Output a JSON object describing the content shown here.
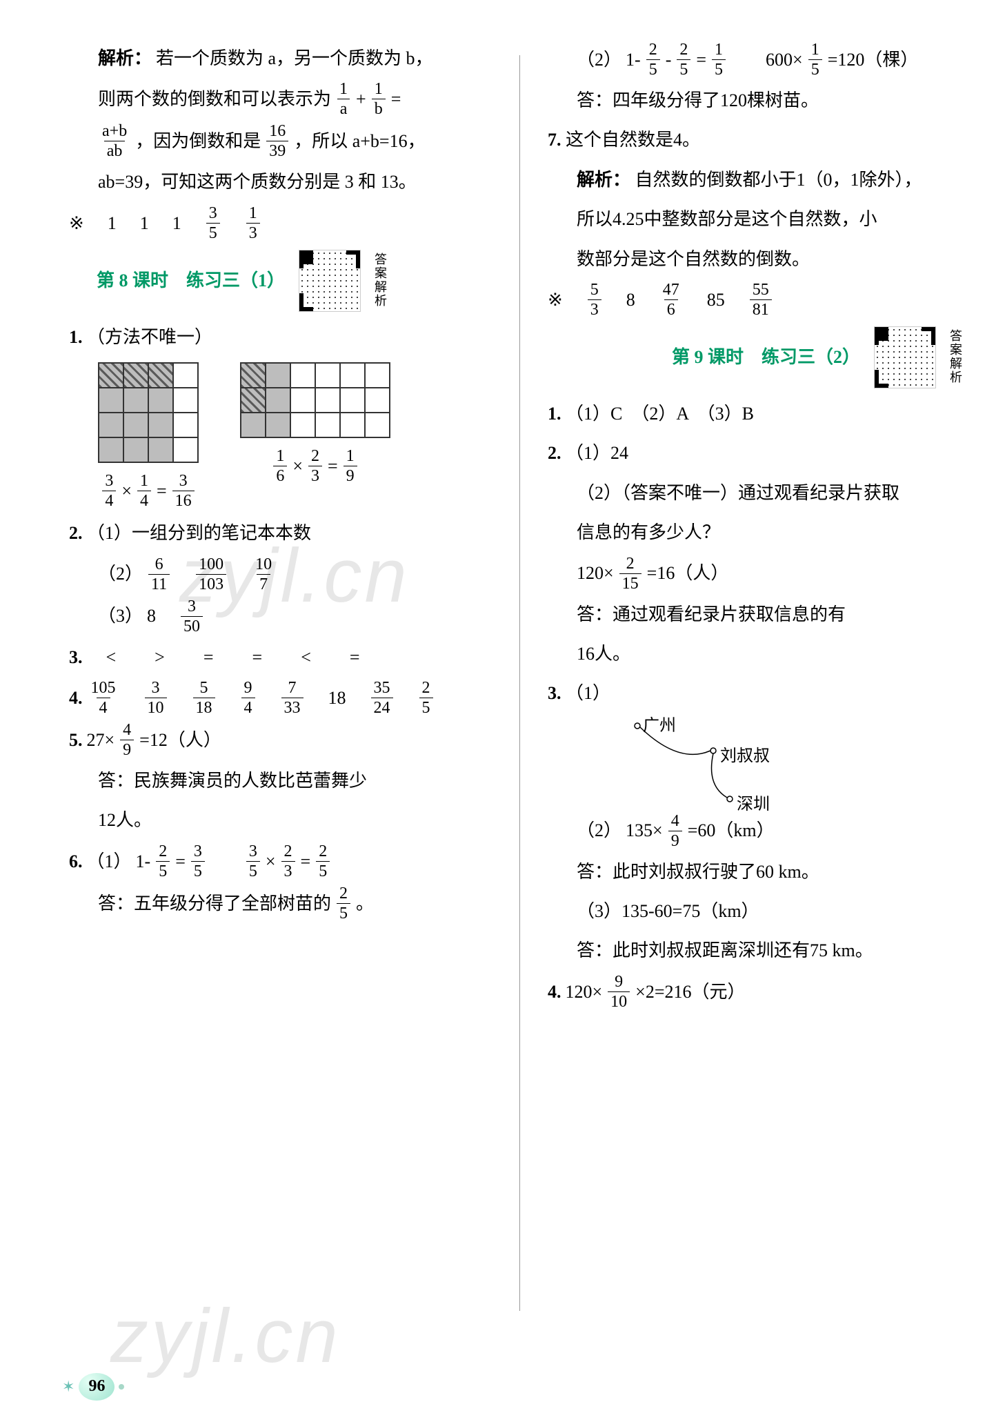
{
  "page_number": "96",
  "watermark_text": "zyjl.cn",
  "colors": {
    "text": "#000000",
    "accent_green": "#009966",
    "grid_shade": "#bdbdbd",
    "page_bg": "#ffffff",
    "pagenum_bg": "#9ee3cf"
  },
  "left": {
    "analysis_label": "解析：",
    "analysis_l1": "若一个质数为 a，另一个质数为 b，",
    "analysis_l2_pre": "则两个数的倒数和可以表示为",
    "analysis_eq_chain": [
      "1",
      "a",
      "+",
      "1",
      "b",
      "="
    ],
    "analysis_l3_lhs": [
      "a+b",
      "ab"
    ],
    "analysis_l3_mid": "，因为倒数和是",
    "analysis_l3_frac": [
      "16",
      "39"
    ],
    "analysis_l3_tail": "，所以 a+b=16，",
    "analysis_l4": "ab=39，可知这两个质数分别是 3 和 13。",
    "star_line": {
      "prefix": "※",
      "parts": [
        "1",
        "1",
        "1",
        "3/5",
        "1/3"
      ]
    },
    "lesson8": "第 8 课时　练习三（1）",
    "qr_side": "答案解析",
    "q1": {
      "num": "1.",
      "text": "（方法不唯一）",
      "gridA": {
        "cols": 4,
        "rows": 4,
        "hatch": [
          [
            0,
            0
          ],
          [
            0,
            1
          ],
          [
            0,
            2
          ]
        ],
        "shade": [
          [
            1,
            0
          ],
          [
            1,
            1
          ],
          [
            1,
            2
          ],
          [
            2,
            0
          ],
          [
            2,
            1
          ],
          [
            2,
            2
          ],
          [
            3,
            0
          ],
          [
            3,
            1
          ],
          [
            3,
            2
          ]
        ]
      },
      "gridB": {
        "cols": 6,
        "rows": 3,
        "hatch": [
          [
            0,
            0
          ],
          [
            1,
            0
          ]
        ],
        "shade": [
          [
            0,
            1
          ],
          [
            1,
            1
          ],
          [
            2,
            0
          ],
          [
            2,
            1
          ]
        ]
      },
      "eqA": [
        "3",
        "4",
        "×",
        "1",
        "4",
        "=",
        "3",
        "16"
      ],
      "eqB": [
        "1",
        "6",
        "×",
        "2",
        "3",
        "=",
        "1",
        "9"
      ]
    },
    "q2": {
      "num": "2.",
      "p1": "（1）一组分到的笔记本本数",
      "p2_label": "（2）",
      "p2_fracs": [
        [
          "6",
          "11"
        ],
        [
          "100",
          "103"
        ],
        [
          "10",
          "7"
        ]
      ],
      "p3_label": "（3）",
      "p3_vals": [
        "8",
        "3/50"
      ]
    },
    "q3": {
      "num": "3.",
      "cmp": [
        "<",
        ">",
        "=",
        "=",
        "<",
        "="
      ]
    },
    "q4": {
      "num": "4.",
      "vals": [
        [
          "105",
          "4"
        ],
        [
          "3",
          "10"
        ],
        [
          "5",
          "18"
        ],
        [
          "9",
          "4"
        ],
        [
          "7",
          "33"
        ],
        "18",
        [
          "35",
          "24"
        ],
        [
          "2",
          "5"
        ]
      ]
    },
    "q5": {
      "num": "5.",
      "calc_pre": "27×",
      "calc_frac": [
        "4",
        "9"
      ],
      "calc_tail": "=12（人）",
      "ans1": "答：民族舞演员的人数比芭蕾舞少",
      "ans2": "12人。"
    },
    "q6": {
      "num": "6.",
      "p1_label": "（1）",
      "p1a": [
        "1-",
        "2",
        "5",
        "=",
        "3",
        "5"
      ],
      "p1b": [
        "3",
        "5",
        "×",
        "2",
        "3",
        "=",
        "2",
        "5"
      ],
      "ans_pre": "答：五年级分得了全部树苗的",
      "ans_frac": [
        "2",
        "5"
      ],
      "ans_tail": "。"
    }
  },
  "right": {
    "q6p2": {
      "label": "（2）",
      "a": [
        "1-",
        "2",
        "5",
        "-",
        "2",
        "5",
        "=",
        "1",
        "5"
      ],
      "b_pre": "600×",
      "b_frac": [
        "1",
        "5"
      ],
      "b_tail": "=120（棵）",
      "ans": "答：四年级分得了120棵树苗。"
    },
    "q7": {
      "num": "7.",
      "head": "这个自然数是4。",
      "analysis_label": "解析：",
      "l1": "自然数的倒数都小于1（0，1除外），",
      "l2": "所以4.25中整数部分是这个自然数，小",
      "l3": "数部分是这个自然数的倒数。"
    },
    "star_line": {
      "prefix": "※",
      "parts": [
        "5/3",
        "8",
        "47/6",
        "85",
        "55/81"
      ]
    },
    "lesson9": "第 9 课时　练习三（2）",
    "qr_side": "答案解析",
    "q1": {
      "num": "1.",
      "text": "（1）C　（2）A　（3）B"
    },
    "q2": {
      "num": "2.",
      "p1": "（1）24",
      "p2a": "（2）（答案不唯一）通过观看纪录片获取",
      "p2b": "信息的有多少人？",
      "calc_pre": "120×",
      "calc_frac": [
        "2",
        "15"
      ],
      "calc_tail": "=16（人）",
      "ans1": "答：通过观看纪录片获取信息的有",
      "ans2": "16人。"
    },
    "q3": {
      "num": "3.",
      "p1": "（1）",
      "labels": {
        "gz": "广州",
        "liu": "刘叔叔",
        "sz": "深圳"
      },
      "p2_label": "（2）",
      "p2_pre": "135×",
      "p2_frac": [
        "4",
        "9"
      ],
      "p2_tail": "=60（km）",
      "ans2": "答：此时刘叔叔行驶了60 km。",
      "p3": "（3）135-60=75（km）",
      "ans3": "答：此时刘叔叔距离深圳还有75 km。"
    },
    "q4": {
      "num": "4.",
      "pre": "120×",
      "frac": [
        "9",
        "10"
      ],
      "tail": "×2=216（元）"
    }
  }
}
